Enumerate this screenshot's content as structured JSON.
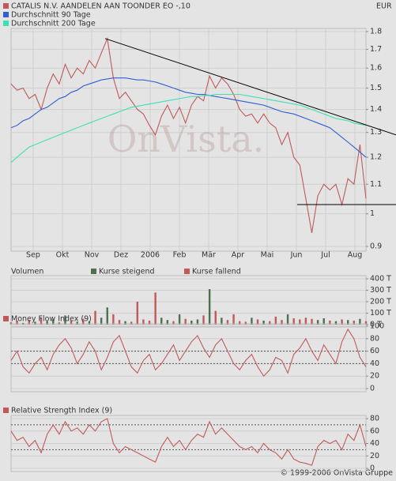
{
  "chart_data": [
    {
      "type": "line",
      "log": true,
      "unit": "EUR",
      "watermark": "OnVista.",
      "grid": true,
      "ylim": [
        0.9,
        1.8
      ],
      "yticks": [
        0.9,
        1.0,
        1.1,
        1.2,
        1.3,
        1.4,
        1.5,
        1.6,
        1.7,
        1.8
      ],
      "x_labels": [
        "Sep",
        "Okt",
        "Nov",
        "Dez",
        "2006",
        "Feb",
        "Mär",
        "Apr",
        "Mai",
        "Jun",
        "Jul",
        "Aug"
      ],
      "trend_lines": [
        [
          1.76,
          1.29
        ],
        [
          1.03,
          1.03
        ]
      ],
      "series": [
        {
          "name": "CATALIS N.V. AANDELEN AAN TOONDER EO -,10",
          "color": "#c05a5a",
          "values": [
            1.52,
            1.49,
            1.5,
            1.45,
            1.47,
            1.4,
            1.5,
            1.57,
            1.52,
            1.62,
            1.55,
            1.6,
            1.57,
            1.64,
            1.6,
            1.68,
            1.76,
            1.55,
            1.45,
            1.48,
            1.44,
            1.4,
            1.38,
            1.33,
            1.29,
            1.37,
            1.42,
            1.36,
            1.41,
            1.34,
            1.42,
            1.46,
            1.44,
            1.56,
            1.5,
            1.55,
            1.52,
            1.47,
            1.4,
            1.37,
            1.38,
            1.34,
            1.38,
            1.34,
            1.32,
            1.25,
            1.3,
            1.2,
            1.17,
            1.05,
            0.94,
            1.06,
            1.1,
            1.08,
            1.1,
            1.03,
            1.12,
            1.1,
            1.25,
            1.05
          ]
        },
        {
          "name": "Durchschnitt 90 Tage",
          "color": "#2f5fd0",
          "values": [
            1.32,
            1.33,
            1.35,
            1.36,
            1.38,
            1.4,
            1.41,
            1.43,
            1.45,
            1.46,
            1.48,
            1.49,
            1.51,
            1.52,
            1.53,
            1.54,
            1.545,
            1.55,
            1.55,
            1.55,
            1.545,
            1.54,
            1.54,
            1.535,
            1.53,
            1.52,
            1.51,
            1.5,
            1.49,
            1.48,
            1.475,
            1.47,
            1.47,
            1.465,
            1.46,
            1.455,
            1.45,
            1.445,
            1.44,
            1.435,
            1.43,
            1.425,
            1.42,
            1.41,
            1.4,
            1.39,
            1.385,
            1.38,
            1.37,
            1.36,
            1.35,
            1.34,
            1.33,
            1.32,
            1.3,
            1.28,
            1.26,
            1.24,
            1.22,
            1.2
          ]
        },
        {
          "name": "Durchschnitt 200 Tage",
          "color": "#3fe0b4",
          "values": [
            1.18,
            1.2,
            1.22,
            1.24,
            1.25,
            1.26,
            1.27,
            1.28,
            1.29,
            1.3,
            1.31,
            1.32,
            1.33,
            1.34,
            1.35,
            1.36,
            1.37,
            1.38,
            1.39,
            1.4,
            1.41,
            1.415,
            1.42,
            1.425,
            1.43,
            1.435,
            1.44,
            1.445,
            1.45,
            1.455,
            1.46,
            1.46,
            1.465,
            1.465,
            1.47,
            1.47,
            1.47,
            1.47,
            1.47,
            1.465,
            1.46,
            1.455,
            1.45,
            1.445,
            1.44,
            1.435,
            1.43,
            1.425,
            1.42,
            1.41,
            1.4,
            1.39,
            1.38,
            1.37,
            1.36,
            1.355,
            1.35,
            1.34,
            1.335,
            1.33
          ]
        }
      ]
    },
    {
      "type": "bar",
      "title": "Volumen",
      "ylim": [
        0,
        400
      ],
      "yticks": [
        {
          "value": 0,
          "label": "0 T"
        },
        {
          "value": 100,
          "label": "100 T"
        },
        {
          "value": 200,
          "label": "200 T"
        },
        {
          "value": 300,
          "label": "300 T"
        },
        {
          "value": 400,
          "label": "400 T"
        }
      ],
      "series": [
        {
          "name": "Kurse steigend",
          "color": "#4f6f4f",
          "values": [
            null,
            null,
            15,
            null,
            25,
            null,
            30,
            45,
            null,
            80,
            null,
            25,
            null,
            30,
            null,
            60,
            150,
            null,
            null,
            30,
            null,
            null,
            null,
            null,
            null,
            60,
            40,
            null,
            90,
            null,
            35,
            45,
            null,
            310,
            null,
            60,
            null,
            null,
            null,
            null,
            60,
            null,
            35,
            null,
            null,
            null,
            90,
            null,
            null,
            null,
            null,
            40,
            55,
            null,
            30,
            null,
            40,
            null,
            50,
            null
          ]
        },
        {
          "name": "Kurse fallend",
          "color": "#c05a5a",
          "values": [
            20,
            35,
            null,
            40,
            null,
            60,
            null,
            null,
            20,
            null,
            35,
            null,
            50,
            null,
            120,
            null,
            null,
            90,
            40,
            null,
            25,
            200,
            45,
            35,
            280,
            null,
            null,
            30,
            null,
            50,
            null,
            null,
            80,
            null,
            120,
            null,
            40,
            90,
            30,
            25,
            null,
            45,
            null,
            30,
            70,
            40,
            null,
            55,
            45,
            60,
            50,
            null,
            null,
            35,
            null,
            45,
            null,
            35,
            null,
            30
          ]
        }
      ]
    },
    {
      "type": "line",
      "ylim": [
        0,
        100
      ],
      "yticks": [
        0,
        20,
        40,
        60,
        80,
        100
      ],
      "reference_lines": [
        40,
        60
      ],
      "series": [
        {
          "name": "Money Flow Index (9)",
          "color": "#c05a5a",
          "values": [
            45,
            60,
            35,
            25,
            40,
            50,
            30,
            55,
            70,
            80,
            65,
            40,
            55,
            75,
            60,
            30,
            50,
            75,
            85,
            60,
            35,
            25,
            45,
            55,
            30,
            40,
            55,
            70,
            45,
            60,
            75,
            85,
            65,
            50,
            70,
            80,
            60,
            40,
            30,
            45,
            55,
            35,
            20,
            30,
            50,
            45,
            25,
            55,
            65,
            80,
            60,
            45,
            70,
            55,
            40,
            75,
            95,
            80,
            50,
            35
          ]
        }
      ]
    },
    {
      "type": "line",
      "ylim": [
        0,
        80
      ],
      "yticks": [
        0,
        20,
        40,
        60,
        80
      ],
      "reference_lines": [
        30,
        70
      ],
      "series": [
        {
          "name": "Relative Strength Index (9)",
          "color": "#c05a5a",
          "values": [
            60,
            45,
            50,
            35,
            45,
            25,
            55,
            70,
            55,
            75,
            60,
            65,
            55,
            70,
            60,
            75,
            80,
            40,
            25,
            35,
            30,
            25,
            20,
            15,
            10,
            35,
            50,
            35,
            45,
            30,
            45,
            55,
            50,
            75,
            55,
            65,
            55,
            45,
            35,
            30,
            35,
            25,
            40,
            30,
            25,
            15,
            30,
            15,
            10,
            8,
            5,
            35,
            45,
            40,
            45,
            30,
            55,
            45,
            70,
            35
          ]
        }
      ]
    }
  ],
  "footer": "© 1999-2006 OnVista Gruppe"
}
